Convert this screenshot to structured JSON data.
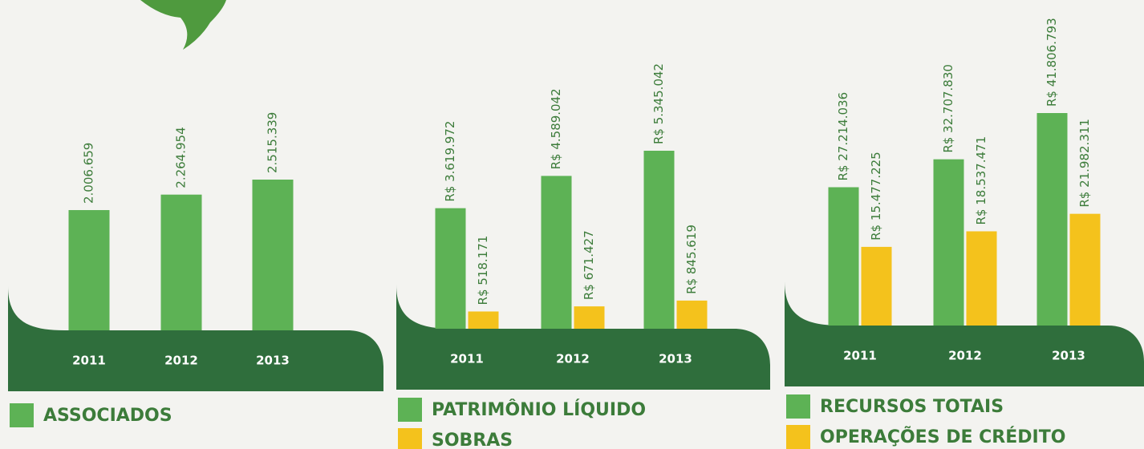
{
  "chart_data": [
    {
      "type": "bar",
      "categories": [
        "2011",
        "2012",
        "2013"
      ],
      "series": [
        {
          "name": "ASSOCIADOS",
          "color": "#5db255",
          "values": [
            2006659,
            2264954,
            2515339
          ],
          "value_labels": [
            "2.006.659",
            "2.264.954",
            "2.515.339"
          ]
        }
      ]
    },
    {
      "type": "bar",
      "categories": [
        "2011",
        "2012",
        "2013"
      ],
      "series": [
        {
          "name": "PATRIMÔNIO LÍQUIDO",
          "color": "#5db255",
          "values": [
            3619972,
            4589042,
            5345042
          ],
          "value_labels": [
            "R$ 3.619.972",
            "R$ 4.589.042",
            "R$ 5.345.042"
          ]
        },
        {
          "name": "SOBRAS",
          "color": "#f4c21c",
          "values": [
            518171,
            671427,
            845619
          ],
          "value_labels": [
            "R$ 518.171",
            "R$ 671.427",
            "R$ 845.619"
          ]
        }
      ]
    },
    {
      "type": "bar",
      "categories": [
        "2011",
        "2012",
        "2013"
      ],
      "series": [
        {
          "name": "RECURSOS TOTAIS",
          "color": "#5db255",
          "values": [
            27214036,
            32707830,
            41806793
          ],
          "value_labels": [
            "R$ 27.214.036",
            "R$ 32.707.830",
            "R$ 41.806.793"
          ]
        },
        {
          "name": "OPERAÇÕES DE CRÉDITO",
          "color": "#f4c21c",
          "values": [
            15477225,
            18537471,
            21982311
          ],
          "value_labels": [
            "R$ 15.477.225",
            "R$ 18.537.471",
            "R$ 21.982.311"
          ]
        }
      ]
    }
  ]
}
